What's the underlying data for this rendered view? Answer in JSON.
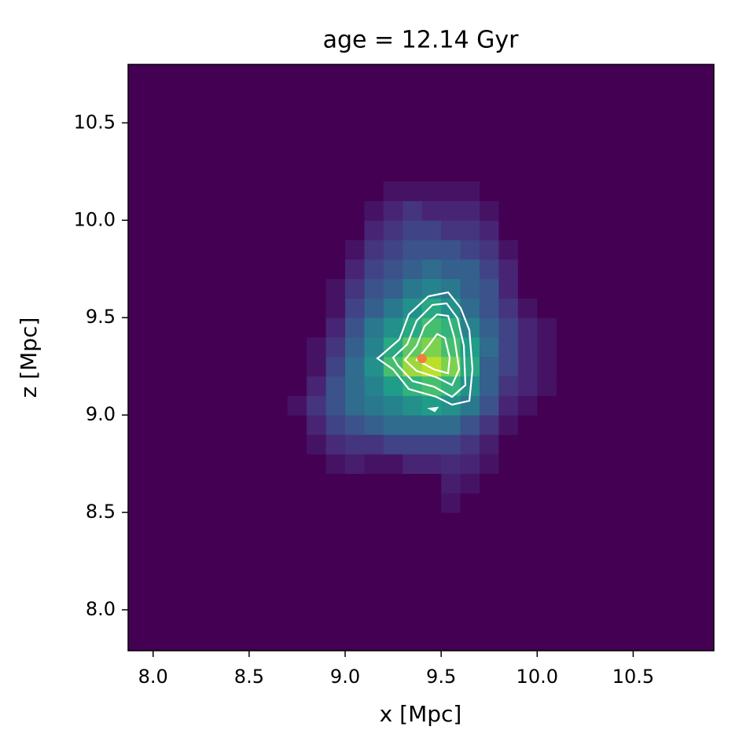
{
  "chart_data": {
    "type": "heatmap2d",
    "title": "age = 12.14 Gyr",
    "x_label": "x [Mpc]",
    "y_label": "z [Mpc]",
    "xlim": [
      7.87,
      10.92
    ],
    "ylim": [
      7.79,
      10.8
    ],
    "xticks": [
      {
        "value": 8.0,
        "label": "8.0"
      },
      8.5,
      {
        "value": 9.0,
        "label": "9.0"
      },
      9.5,
      {
        "value": 10.0,
        "label": "10.0"
      },
      10.5
    ],
    "yticks": [
      {
        "value": 8.0,
        "label": "8.0"
      },
      8.5,
      {
        "value": 9.0,
        "label": "9.0"
      },
      9.5,
      {
        "value": 10.0,
        "label": "10.0"
      },
      10.5
    ],
    "colormap": "viridis",
    "x_bins": [
      8.7,
      8.8,
      8.9,
      9.0,
      9.1,
      9.2,
      9.3,
      9.4,
      9.5,
      9.6,
      9.7,
      9.8,
      9.9,
      10.0,
      10.1,
      10.2
    ],
    "y_bins": [
      8.5,
      8.6,
      8.7,
      8.8,
      8.9,
      9.0,
      9.1,
      9.2,
      9.3,
      9.4,
      9.5,
      9.6,
      9.7,
      9.8,
      9.9,
      10.0,
      10.1,
      10.2
    ],
    "density": [
      [
        0,
        0,
        0,
        0,
        0,
        0,
        0,
        0,
        0.05,
        0,
        0,
        0,
        0,
        0,
        0
      ],
      [
        0,
        0,
        0,
        0,
        0,
        0,
        0,
        0,
        0.08,
        0.05,
        0,
        0,
        0,
        0,
        0
      ],
      [
        0,
        0,
        0.05,
        0.08,
        0.05,
        0.05,
        0.1,
        0.1,
        0.12,
        0.1,
        0.05,
        0,
        0,
        0,
        0
      ],
      [
        0,
        0.05,
        0.12,
        0.15,
        0.15,
        0.2,
        0.2,
        0.2,
        0.2,
        0.15,
        0.08,
        0,
        0,
        0,
        0
      ],
      [
        0,
        0.1,
        0.2,
        0.25,
        0.3,
        0.35,
        0.35,
        0.35,
        0.35,
        0.25,
        0.15,
        0.05,
        0,
        0,
        0
      ],
      [
        0.05,
        0.15,
        0.25,
        0.35,
        0.4,
        0.45,
        0.5,
        0.55,
        0.5,
        0.4,
        0.25,
        0.1,
        0.05,
        0,
        0
      ],
      [
        0,
        0.1,
        0.25,
        0.35,
        0.45,
        0.55,
        0.65,
        0.7,
        0.65,
        0.5,
        0.3,
        0.15,
        0.1,
        0.05,
        0
      ],
      [
        0,
        0.05,
        0.2,
        0.35,
        0.5,
        0.7,
        0.85,
        0.9,
        0.8,
        0.6,
        0.3,
        0.2,
        0.1,
        0.05,
        0
      ],
      [
        0,
        0.05,
        0.15,
        0.3,
        0.45,
        0.6,
        0.75,
        0.8,
        0.7,
        0.55,
        0.35,
        0.2,
        0.1,
        0.05,
        0
      ],
      [
        0,
        0,
        0.1,
        0.25,
        0.4,
        0.5,
        0.6,
        0.7,
        0.65,
        0.45,
        0.3,
        0.2,
        0.1,
        0.05,
        0
      ],
      [
        0,
        0,
        0.05,
        0.2,
        0.3,
        0.4,
        0.5,
        0.6,
        0.5,
        0.35,
        0.25,
        0.15,
        0.05,
        0,
        0
      ],
      [
        0,
        0,
        0.05,
        0.15,
        0.25,
        0.3,
        0.4,
        0.45,
        0.4,
        0.3,
        0.25,
        0.1,
        0,
        0,
        0
      ],
      [
        0,
        0,
        0,
        0.1,
        0.2,
        0.25,
        0.3,
        0.35,
        0.3,
        0.3,
        0.2,
        0.1,
        0,
        0,
        0
      ],
      [
        0,
        0,
        0,
        0.05,
        0.15,
        0.2,
        0.25,
        0.25,
        0.25,
        0.2,
        0.15,
        0.05,
        0,
        0,
        0
      ],
      [
        0,
        0,
        0,
        0,
        0.1,
        0.15,
        0.2,
        0.2,
        0.15,
        0.15,
        0.1,
        0,
        0,
        0,
        0
      ],
      [
        0,
        0,
        0,
        0,
        0.05,
        0.1,
        0.15,
        0.1,
        0.1,
        0.1,
        0.05,
        0,
        0,
        0,
        0
      ],
      [
        0,
        0,
        0,
        0,
        0,
        0.05,
        0.05,
        0.05,
        0.05,
        0.05,
        0,
        0,
        0,
        0,
        0
      ]
    ],
    "center": {
      "x": [
        9.4
      ],
      "y": [
        9.29
      ],
      "color": "#f07f3c"
    }
  }
}
